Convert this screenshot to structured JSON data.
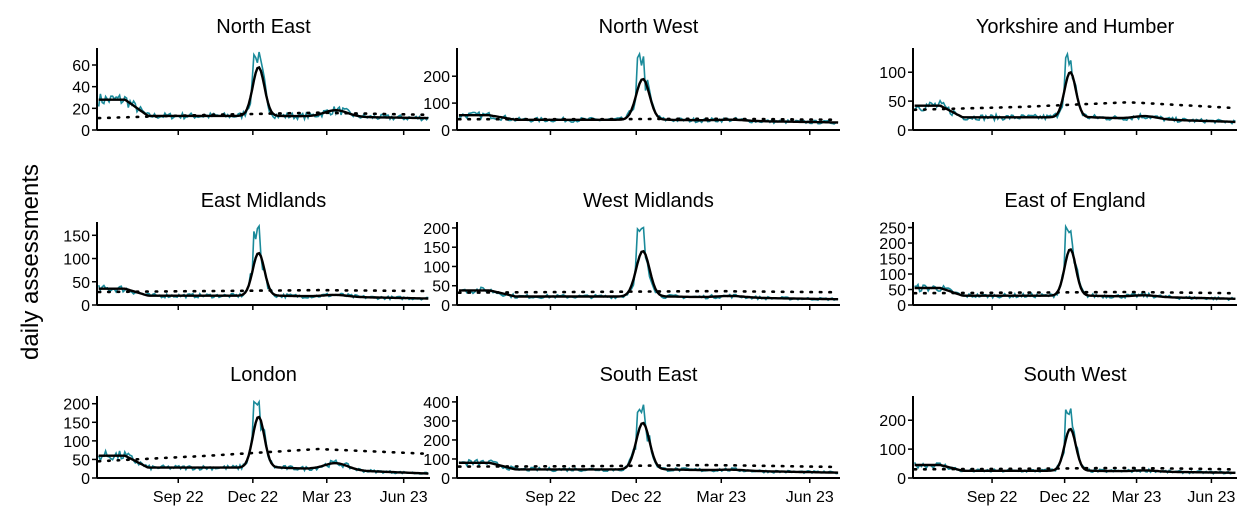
{
  "chart_data": {
    "type": "line",
    "ylabel": "daily assessments",
    "x_ticks": [
      "Sep 22",
      "Dec 22",
      "Mar 23",
      "Jun 23"
    ],
    "series_styles": {
      "daily": {
        "color": "#1a8a9a",
        "style": "solid"
      },
      "smoothed": {
        "color": "#000000",
        "style": "solid"
      },
      "baseline": {
        "color": "#000000",
        "style": "dotted"
      }
    },
    "panels": [
      {
        "title": "North East",
        "yticks": [
          0,
          20,
          40,
          60
        ],
        "ylim": [
          0,
          72
        ],
        "level": 13,
        "peak": 58,
        "spike": 75,
        "early": 28,
        "tail": 11,
        "baseline": [
          11,
          14,
          16,
          14
        ],
        "bump": 6
      },
      {
        "title": "North West",
        "yticks": [
          0,
          100,
          200
        ],
        "ylim": [
          0,
          290
        ],
        "level": 38,
        "peak": 190,
        "spike": 285,
        "early": 55,
        "tail": 28,
        "baseline": [
          40,
          40,
          42,
          38
        ],
        "bump": 4
      },
      {
        "title": "Yorkshire and Humber",
        "yticks": [
          0,
          50,
          100
        ],
        "ylim": [
          0,
          135
        ],
        "level": 22,
        "peak": 100,
        "spike": 135,
        "early": 42,
        "tail": 14,
        "baseline": [
          35,
          40,
          48,
          38
        ],
        "bump": 5
      },
      {
        "title": "East Midlands",
        "yticks": [
          0,
          50,
          100,
          150
        ],
        "ylim": [
          0,
          170
        ],
        "level": 20,
        "peak": 112,
        "spike": 170,
        "early": 35,
        "tail": 14,
        "baseline": [
          28,
          30,
          32,
          30
        ],
        "bump": 4
      },
      {
        "title": "West Midlands",
        "yticks": [
          0,
          50,
          100,
          150,
          200
        ],
        "ylim": [
          0,
          205
        ],
        "level": 22,
        "peak": 140,
        "spike": 205,
        "early": 38,
        "tail": 15,
        "baseline": [
          32,
          34,
          36,
          33
        ],
        "bump": 4
      },
      {
        "title": "East of England",
        "yticks": [
          0,
          50,
          100,
          150,
          200,
          250
        ],
        "ylim": [
          0,
          255
        ],
        "level": 30,
        "peak": 180,
        "spike": 255,
        "early": 55,
        "tail": 20,
        "baseline": [
          38,
          40,
          42,
          38
        ],
        "bump": 5
      },
      {
        "title": "London",
        "yticks": [
          0,
          50,
          100,
          150,
          200
        ],
        "ylim": [
          0,
          210
        ],
        "level": 28,
        "peak": 165,
        "spike": 210,
        "early": 60,
        "tail": 12,
        "baseline": [
          45,
          60,
          78,
          65
        ],
        "bump": 18
      },
      {
        "title": "South East",
        "yticks": [
          0,
          100,
          200,
          300,
          400
        ],
        "ylim": [
          0,
          410
        ],
        "level": 45,
        "peak": 290,
        "spike": 410,
        "early": 80,
        "tail": 28,
        "baseline": [
          60,
          62,
          68,
          58
        ],
        "bump": 5
      },
      {
        "title": "South West",
        "yticks": [
          0,
          100,
          200
        ],
        "ylim": [
          0,
          270
        ],
        "level": 25,
        "peak": 170,
        "spike": 270,
        "early": 45,
        "tail": 18,
        "baseline": [
          30,
          32,
          35,
          30
        ],
        "bump": 4
      }
    ]
  }
}
